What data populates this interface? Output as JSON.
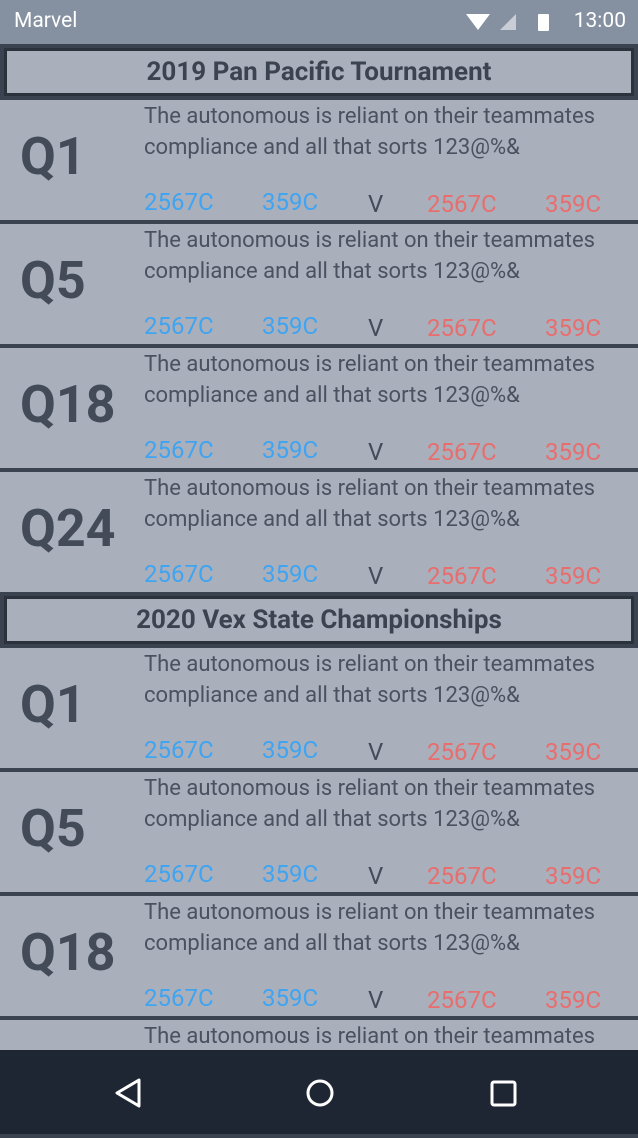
{
  "status_bar": {
    "app": "Marvel",
    "time": "13:00"
  },
  "sections": [
    {
      "title": "2019 Pan Pacific Tournament",
      "matches": [
        {
          "label": "Q1",
          "description": "The autonomous is reliant on their teammates compliance and all that sorts 123@%&",
          "blue": [
            "2567C",
            "359C"
          ],
          "versus": "V",
          "red": [
            "2567C",
            "359C"
          ]
        },
        {
          "label": "Q5",
          "description": "The autonomous is reliant on their teammates compliance and all that sorts 123@%&",
          "blue": [
            "2567C",
            "359C"
          ],
          "versus": "V",
          "red": [
            "2567C",
            "359C"
          ]
        },
        {
          "label": "Q18",
          "description": "The autonomous is reliant on their teammates compliance and all that sorts 123@%&",
          "blue": [
            "2567C",
            "359C"
          ],
          "versus": "V",
          "red": [
            "2567C",
            "359C"
          ]
        },
        {
          "label": "Q24",
          "description": "The autonomous is reliant on their teammates compliance and all that sorts 123@%&",
          "blue": [
            "2567C",
            "359C"
          ],
          "versus": "V",
          "red": [
            "2567C",
            "359C"
          ]
        }
      ]
    },
    {
      "title": "2020 Vex State Championships",
      "matches": [
        {
          "label": "Q1",
          "description": "The autonomous is reliant on their teammates compliance and all that sorts 123@%&",
          "blue": [
            "2567C",
            "359C"
          ],
          "versus": "V",
          "red": [
            "2567C",
            "359C"
          ]
        },
        {
          "label": "Q5",
          "description": "The autonomous is reliant on their teammates compliance and all that sorts 123@%&",
          "blue": [
            "2567C",
            "359C"
          ],
          "versus": "V",
          "red": [
            "2567C",
            "359C"
          ]
        },
        {
          "label": "Q18",
          "description": "The autonomous is reliant on their teammates compliance and all that sorts 123@%&",
          "blue": [
            "2567C",
            "359C"
          ],
          "versus": "V",
          "red": [
            "2567C",
            "359C"
          ]
        },
        {
          "description": "The autonomous is reliant on their teammates"
        }
      ]
    }
  ]
}
